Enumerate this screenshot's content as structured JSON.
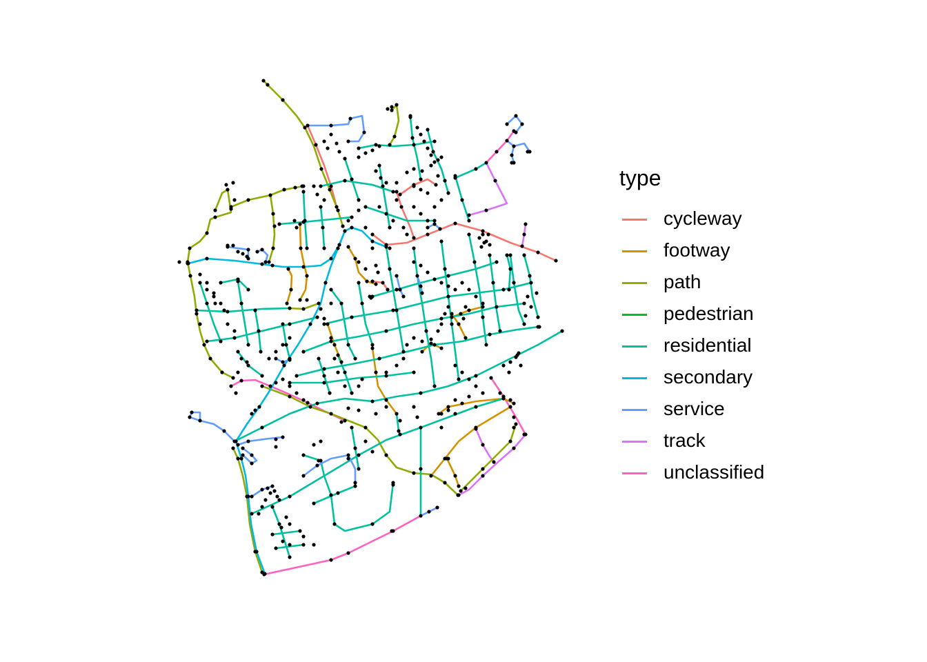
{
  "legend": {
    "title": "type",
    "items": [
      {
        "label": "cycleway",
        "color": "#F8766D"
      },
      {
        "label": "footway",
        "color": "#D39200"
      },
      {
        "label": "path",
        "color": "#93AA00"
      },
      {
        "label": "pedestrian",
        "color": "#00BA38"
      },
      {
        "label": "residential",
        "color": "#00C19F"
      },
      {
        "label": "secondary",
        "color": "#00B9E3"
      },
      {
        "label": "service",
        "color": "#619CFF"
      },
      {
        "label": "track",
        "color": "#DB72FB"
      },
      {
        "label": "unclassified",
        "color": "#FF61C3"
      }
    ]
  },
  "map": {
    "node_color": "#000000",
    "background": "#ffffff"
  }
}
